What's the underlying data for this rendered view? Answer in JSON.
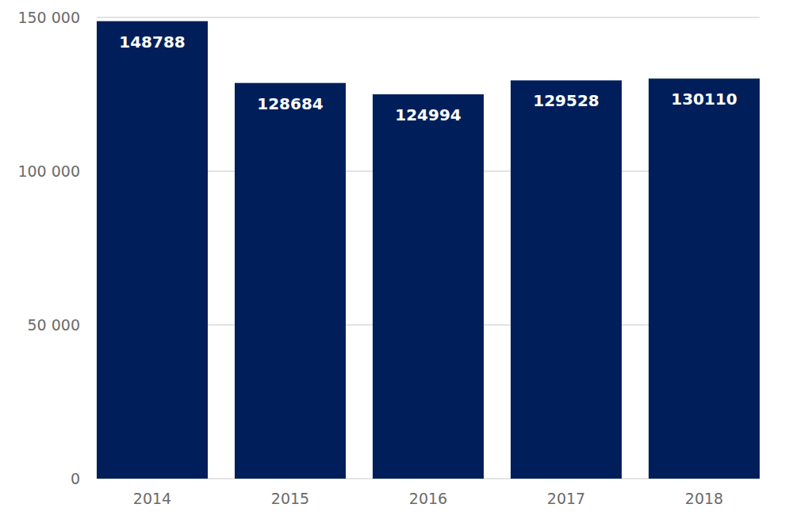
{
  "chart_data": {
    "type": "bar",
    "categories": [
      "2014",
      "2015",
      "2016",
      "2017",
      "2018"
    ],
    "values": [
      148788,
      128684,
      124994,
      129528,
      130110
    ],
    "color": "#001f5a",
    "ylim": [
      0,
      150000
    ],
    "yticks": [
      0,
      {
        "value": 50000,
        "label": "50 000"
      },
      {
        "value": 100000,
        "label": "100 000"
      },
      {
        "value": 150000,
        "label": "150 000"
      }
    ],
    "grid": true,
    "data_labels": true
  }
}
